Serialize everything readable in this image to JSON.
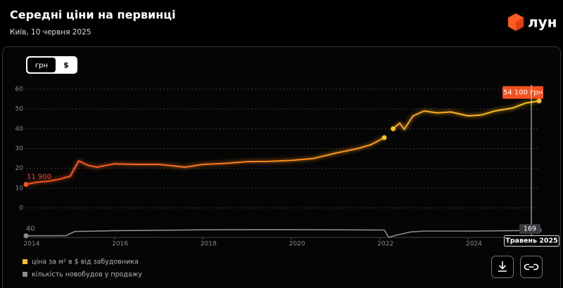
{
  "header": {
    "title": "Середні ціни на первинці",
    "subtitle": "Київ, 10 червня 2025",
    "logo": "лун"
  },
  "currency_toggle": [
    "грн",
    "$"
  ],
  "tooltip": {
    "date": "Травень 2025"
  },
  "chart_data": [
    {
      "type": "line",
      "x": [
        2014,
        2014.25,
        2014.5,
        2014.75,
        2015,
        2015.19,
        2015.4,
        2015.6,
        2016,
        2016.5,
        2017,
        2017.6,
        2018,
        2018.5,
        2019,
        2019.5,
        2020,
        2020.5,
        2021,
        2021.5,
        2021.8,
        2022.1,
        2022.2,
        2022.3,
        2022.45,
        2022.55,
        2022.75,
        2023,
        2023.3,
        2023.6,
        2024,
        2024.3,
        2024.6,
        2025,
        2025.3,
        2025.6
      ],
      "series": [
        {
          "name": "ціна за м² в $ від забудовника",
          "colors": [
            "#f4511e",
            "#ffc21a"
          ],
          "values": [
            11.9,
            13,
            13.5,
            14.5,
            16,
            23.8,
            21.5,
            20.6,
            22.3,
            22,
            22,
            20.6,
            22,
            22.5,
            23.4,
            23.5,
            24,
            25,
            27.7,
            30,
            32,
            35.5,
            null,
            40,
            42.9,
            39.7,
            46.5,
            49,
            48,
            48.5,
            46.5,
            47,
            49,
            50.5,
            53,
            54.1
          ],
          "value_labels": [
            "11 900",
            null,
            null,
            null,
            null,
            null,
            null,
            null,
            null,
            null,
            null,
            null,
            null,
            null,
            null,
            null,
            null,
            null,
            null,
            null,
            null,
            null,
            null,
            null,
            null,
            null,
            null,
            null,
            null,
            null,
            null,
            null,
            null,
            null,
            null,
            "54 100 грн"
          ]
        }
      ],
      "xlim": [
        2014,
        2025.6
      ],
      "xticks": [
        2014,
        2016,
        2018,
        2020,
        2022,
        2024
      ],
      "ylim": [
        0,
        60
      ],
      "yticks": [
        0,
        10,
        20,
        30,
        40,
        50,
        60
      ],
      "grid": true
    },
    {
      "type": "line",
      "x": [
        2014,
        2014.5,
        2014.9,
        2015.1,
        2016,
        2017,
        2018,
        2019,
        2020,
        2021,
        2022.1,
        2022.2,
        2022.4,
        2022.7,
        2023,
        2024,
        2025,
        2025.6
      ],
      "series": [
        {
          "name": "кількість новобудов у продажу",
          "color": "#8a8a90",
          "values": [
            40,
            40,
            42,
            140,
            160,
            170,
            180,
            185,
            185,
            180,
            175,
            5,
            60,
            130,
            150,
            150,
            160,
            169
          ]
        }
      ],
      "xlim": [
        2014,
        2025.6
      ],
      "ylim": [
        0,
        250
      ]
    }
  ]
}
